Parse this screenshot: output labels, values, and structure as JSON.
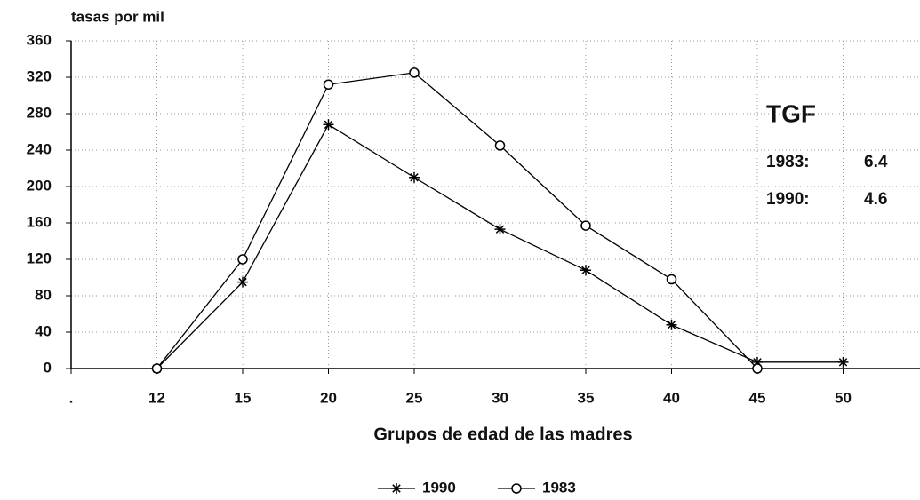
{
  "chart_data": {
    "type": "line",
    "y_label": "tasas por mil",
    "x_label": "Grupos de edad de las madres",
    "categories": [
      ".",
      "12",
      "15",
      "20",
      "25",
      "30",
      "35",
      "40",
      "45",
      "50"
    ],
    "series": [
      {
        "name": "1990",
        "color": "#000000",
        "marker": "star",
        "values": [
          null,
          0,
          95,
          268,
          210,
          153,
          108,
          48,
          7,
          7
        ]
      },
      {
        "name": "1983",
        "color": "#000000",
        "marker": "circle",
        "values": [
          null,
          0,
          120,
          312,
          325,
          245,
          157,
          98,
          0,
          null
        ]
      }
    ],
    "ylim": [
      0,
      360
    ],
    "yticks": [
      0,
      40,
      80,
      120,
      160,
      200,
      240,
      280,
      320,
      360
    ],
    "grid": true,
    "legend": "bottom",
    "annotations": {
      "title": "TGF",
      "rows": [
        [
          "1983:",
          "6.4"
        ],
        [
          "1990:",
          "4.6"
        ]
      ]
    }
  }
}
